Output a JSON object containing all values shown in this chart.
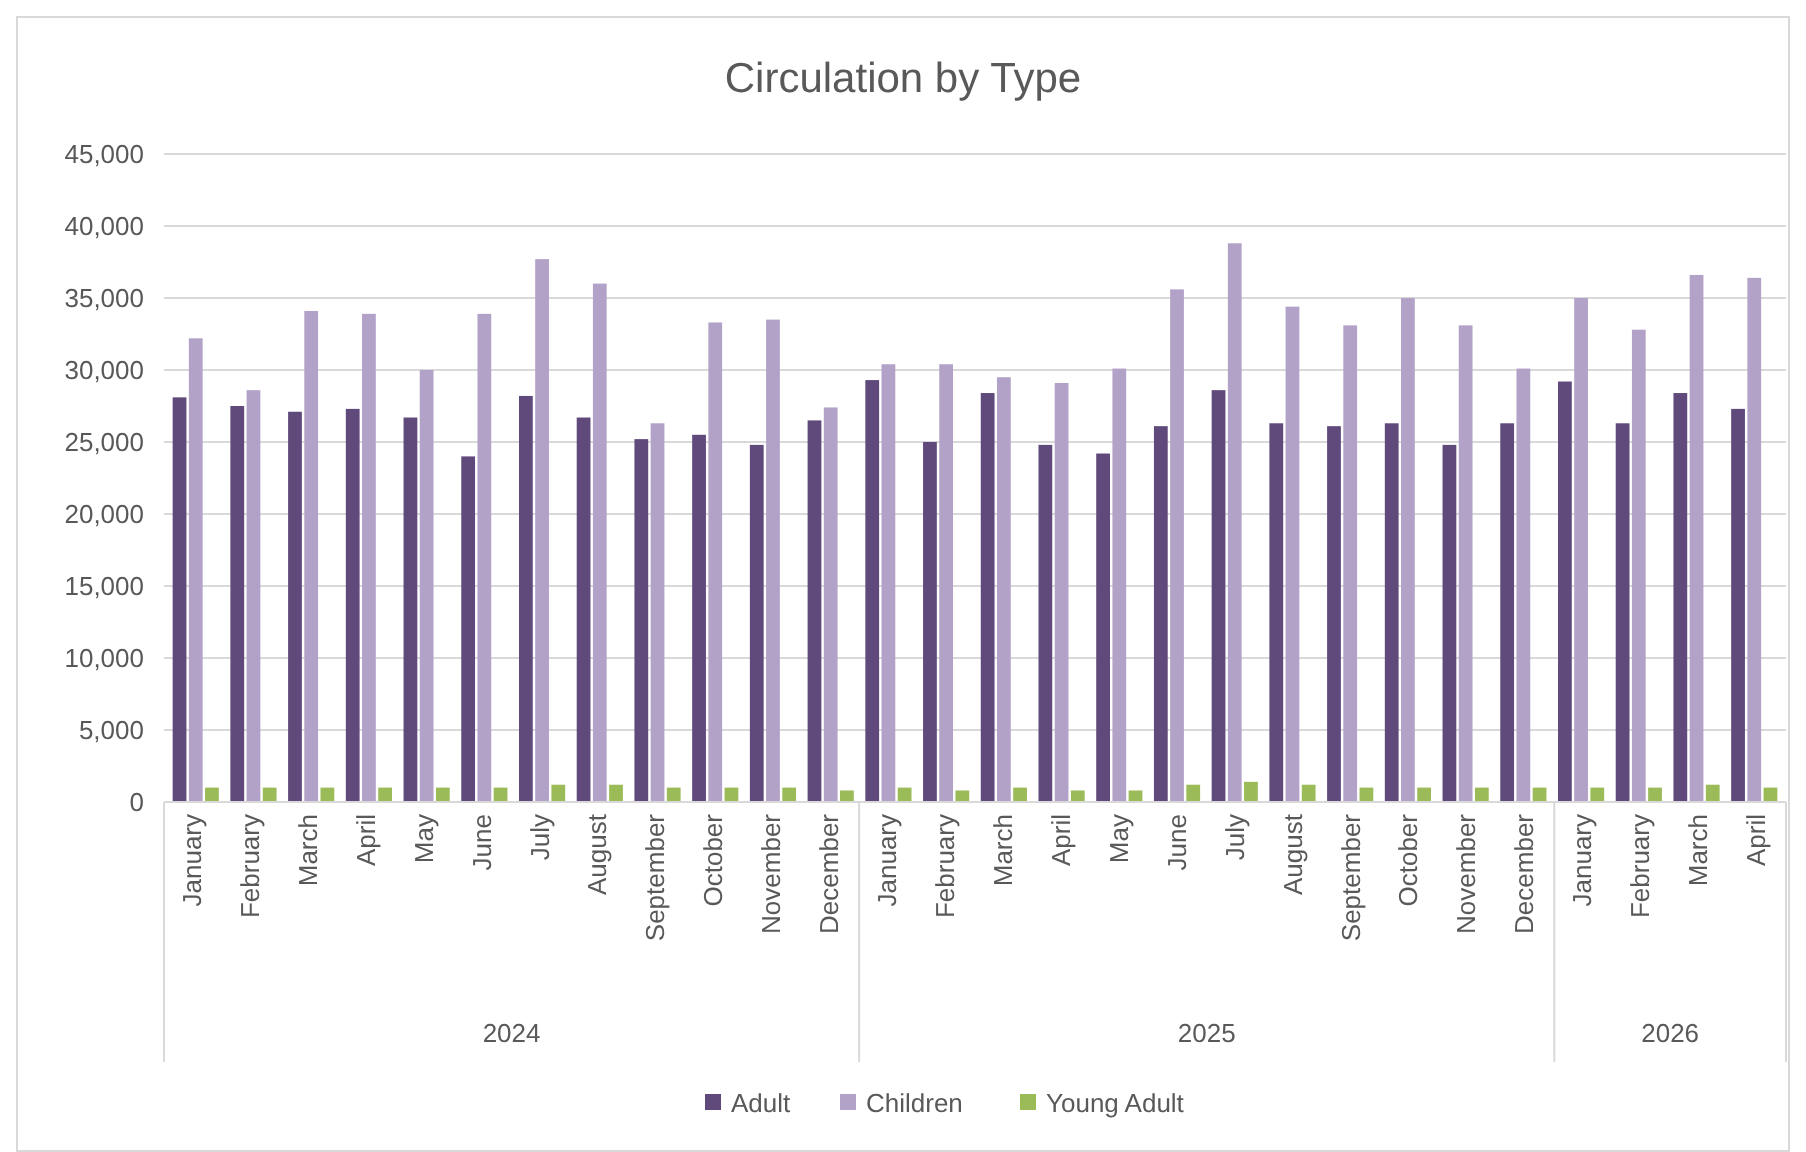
{
  "chart_data": {
    "type": "bar",
    "title": "Circulation by Type",
    "categories": [
      "January",
      "February",
      "March",
      "April",
      "May",
      "June",
      "July",
      "August",
      "September",
      "October",
      "November",
      "December",
      "January",
      "February",
      "March",
      "April",
      "May",
      "June",
      "July",
      "August",
      "September",
      "October",
      "November",
      "December",
      "January",
      "February",
      "March",
      "April"
    ],
    "series": [
      {
        "name": "Adult",
        "color": "#604a7b",
        "values": [
          28100,
          27500,
          27100,
          27300,
          26700,
          24000,
          28200,
          26700,
          25200,
          25500,
          24800,
          26500,
          29300,
          25000,
          28400,
          24800,
          24200,
          26100,
          28600,
          26300,
          26100,
          26300,
          24800,
          26300,
          29200,
          26300,
          28400,
          27300
        ]
      },
      {
        "name": "Children",
        "color": "#b3a2c7",
        "values": [
          32200,
          28600,
          34100,
          33900,
          30000,
          33900,
          37700,
          36000,
          26300,
          33300,
          33500,
          27400,
          30400,
          30400,
          29500,
          29100,
          30100,
          35600,
          38800,
          34400,
          33100,
          35000,
          33100,
          30100,
          35000,
          32800,
          36600,
          36400
        ]
      },
      {
        "name": "Young Adult",
        "color": "#9bbb59",
        "values": [
          1000,
          1000,
          1000,
          1000,
          1000,
          1000,
          1200,
          1200,
          1000,
          1000,
          1000,
          800,
          1000,
          800,
          1000,
          800,
          800,
          1200,
          1400,
          1200,
          1000,
          1000,
          1000,
          1000,
          1000,
          1000,
          1200,
          1000
        ]
      }
    ],
    "annotations": [
      "2024",
      "2025",
      "2026"
    ],
    "ylim": [
      0,
      45000
    ],
    "yticks": [
      {
        "value": 0,
        "label": "0"
      },
      {
        "value": 5000,
        "label": "5,000"
      },
      {
        "value": 10000,
        "label": "10,000"
      },
      {
        "value": 15000,
        "label": "15,000"
      },
      {
        "value": 20000,
        "label": "20,000"
      },
      {
        "value": 25000,
        "label": "25,000"
      },
      {
        "value": 30000,
        "label": "30,000"
      },
      {
        "value": 35000,
        "label": "35,000"
      },
      {
        "value": 40000,
        "label": "40,000"
      },
      {
        "value": 45000,
        "label": "45,000"
      }
    ],
    "grid": "y",
    "legend": "bottom"
  }
}
